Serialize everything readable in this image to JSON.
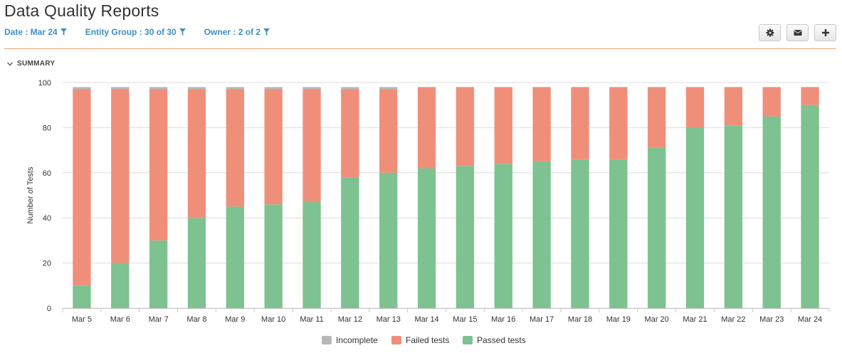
{
  "header": {
    "title": "Data Quality Reports"
  },
  "filters": [
    {
      "label": "Date : Mar 24",
      "icon": "filter-icon"
    },
    {
      "label": "Entity Group : 30 of 30",
      "icon": "filter-icon"
    },
    {
      "label": "Owner : 2 of 2",
      "icon": "filter-icon"
    }
  ],
  "toolbar": {
    "icons": [
      "gear-icon",
      "envelope-icon",
      "plus-icon"
    ]
  },
  "summary": {
    "label": "SUMMARY",
    "icon": "chevron-down-icon"
  },
  "colors": {
    "accent": "#e8a46a",
    "link": "#3d8fc2",
    "incomplete": "#b8b8b8",
    "failed": "#ef8f7a",
    "passed": "#7dc290"
  },
  "chart_data": {
    "type": "bar",
    "stacked": true,
    "ylabel": "Number of Tests",
    "ylim": [
      0,
      100
    ],
    "yticks": [
      0,
      20,
      40,
      60,
      80,
      100
    ],
    "grid": true,
    "legend": "bottom",
    "categories": [
      "Mar 5",
      "Mar 6",
      "Mar 7",
      "Mar 8",
      "Mar 9",
      "Mar 10",
      "Mar 11",
      "Mar 12",
      "Mar 13",
      "Mar 14",
      "Mar 15",
      "Mar 16",
      "Mar 17",
      "Mar 18",
      "Mar 19",
      "Mar 20",
      "Mar 21",
      "Mar 22",
      "Mar 23",
      "Mar 24"
    ],
    "series": [
      {
        "name": "Passed tests",
        "color": "#7dc290",
        "values": [
          10,
          20,
          30,
          40,
          45,
          46,
          47,
          58,
          60,
          62,
          63,
          64,
          65,
          66,
          66,
          71,
          80,
          81,
          85,
          90
        ]
      },
      {
        "name": "Failed tests",
        "color": "#ef8f7a",
        "values": [
          87,
          77,
          67,
          57,
          52,
          51,
          50,
          39,
          37,
          36,
          35,
          34,
          33,
          32,
          32,
          27,
          18,
          17,
          13,
          8
        ]
      },
      {
        "name": "Incomplete",
        "color": "#b8b8b8",
        "values": [
          1,
          1,
          1,
          1,
          1,
          1,
          1,
          1,
          1,
          0,
          0,
          0,
          0,
          0,
          0,
          0,
          0,
          0,
          0,
          0
        ]
      }
    ],
    "legend_order": [
      "Incomplete",
      "Failed tests",
      "Passed tests"
    ]
  }
}
